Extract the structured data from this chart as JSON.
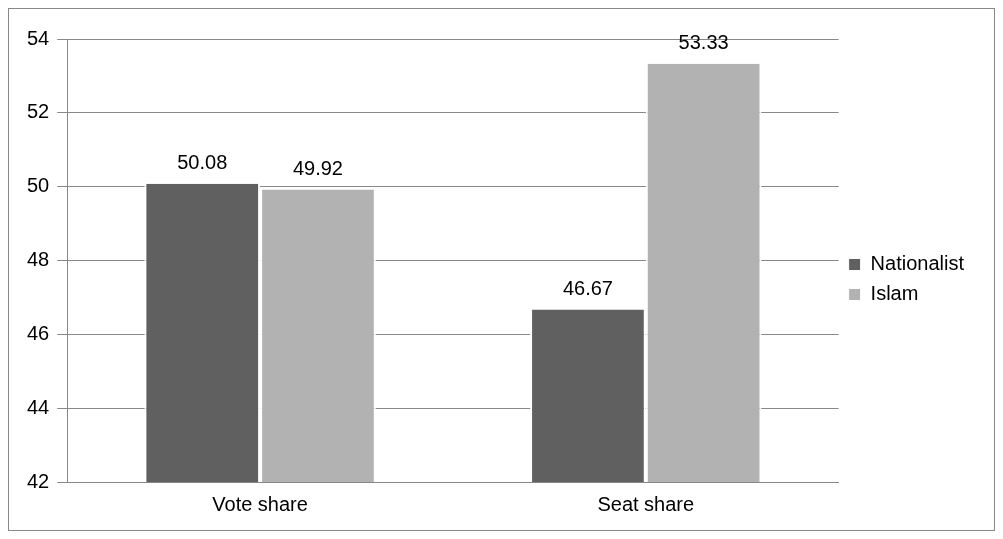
{
  "chart_data": {
    "type": "bar",
    "categories": [
      "Vote share",
      "Seat share"
    ],
    "series": [
      {
        "name": "Nationalist",
        "color": "#606060",
        "values": [
          50.08,
          46.67
        ]
      },
      {
        "name": "Islam",
        "color": "#b2b2b2",
        "values": [
          49.92,
          53.33
        ]
      }
    ],
    "ylim": [
      42,
      54
    ],
    "yticks": [
      42,
      44,
      46,
      48,
      50,
      52,
      54
    ],
    "grid": "y",
    "legend": "right",
    "data_labels": true
  }
}
